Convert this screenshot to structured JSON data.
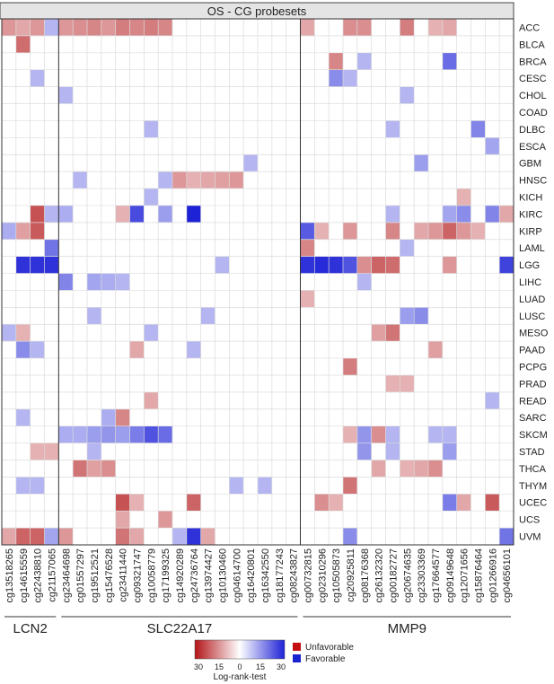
{
  "chart_data": {
    "type": "heatmap",
    "title": "OS - CG probesets",
    "rows": [
      "ACC",
      "BLCA",
      "BRCA",
      "CESC",
      "CHOL",
      "COAD",
      "DLBC",
      "ESCA",
      "GBM",
      "HNSC",
      "KICH",
      "KIRC",
      "KIRP",
      "LAML",
      "LGG",
      "LIHC",
      "LUAD",
      "LUSC",
      "MESO",
      "PAAD",
      "PCPG",
      "PRAD",
      "READ",
      "SARC",
      "SKCM",
      "STAD",
      "THCA",
      "THYM",
      "UCEC",
      "UCS",
      "UVM"
    ],
    "groups": [
      {
        "name": "LCN2",
        "columns": [
          "cg13518265",
          "cg14615559",
          "cg22438810",
          "cg21157065"
        ]
      },
      {
        "name": "SLC22A17",
        "columns": [
          "cg23464698",
          "cg01557297",
          "cg19512521",
          "cg15476528",
          "cg23411440",
          "cg09321747",
          "cg10058779",
          "cg17199325",
          "cg14920289",
          "cg24736764",
          "cg13974427",
          "cg10130460",
          "cg04614700",
          "cg16420801",
          "cg16342550",
          "cg18177243",
          "cg08243827"
        ]
      },
      {
        "name": "MMP9",
        "columns": [
          "cg00732815",
          "cg02310296",
          "cg10505873",
          "cg20925811",
          "cg08176368",
          "cg26132320",
          "cg00182727",
          "cg20674635",
          "cg23303369",
          "cg17664577",
          "cg09149648",
          "cg12071656",
          "cg15876464",
          "cg01266916",
          "cg04656101"
        ]
      }
    ],
    "value_scale": "signed log-rank statistic: negative = unfavorable (red), positive = favorable (blue)",
    "cells": [
      [
        "ACC",
        0,
        -12
      ],
      [
        "ACC",
        1,
        -10
      ],
      [
        "ACC",
        2,
        -12
      ],
      [
        "ACC",
        3,
        9
      ],
      [
        "ACC",
        4,
        -12
      ],
      [
        "ACC",
        5,
        -13
      ],
      [
        "ACC",
        6,
        -14
      ],
      [
        "ACC",
        7,
        -12
      ],
      [
        "ACC",
        8,
        -15
      ],
      [
        "ACC",
        9,
        -14
      ],
      [
        "ACC",
        10,
        -15
      ],
      [
        "ACC",
        11,
        -14
      ],
      [
        "BLCA",
        1,
        -17
      ],
      [
        "CESC",
        2,
        9
      ],
      [
        "CHOL",
        4,
        9
      ],
      [
        "DLBC",
        10,
        9
      ],
      [
        "GBM",
        17,
        9
      ],
      [
        "HNSC",
        5,
        9
      ],
      [
        "HNSC",
        11,
        9
      ],
      [
        "HNSC",
        12,
        -12
      ],
      [
        "HNSC",
        13,
        -9
      ],
      [
        "HNSC",
        14,
        -10
      ],
      [
        "HNSC",
        15,
        -11
      ],
      [
        "HNSC",
        16,
        -12
      ],
      [
        "KICH",
        10,
        9
      ],
      [
        "KIRC",
        2,
        -20
      ],
      [
        "KIRC",
        3,
        9
      ],
      [
        "KIRC",
        4,
        10
      ],
      [
        "KIRC",
        8,
        -9
      ],
      [
        "KIRC",
        9,
        22
      ],
      [
        "KIRC",
        11,
        12
      ],
      [
        "KIRC",
        13,
        27
      ],
      [
        "KIRP",
        0,
        10
      ],
      [
        "KIRP",
        1,
        -11
      ],
      [
        "KIRP",
        2,
        -19
      ],
      [
        "KIRP",
        21,
        20
      ],
      [
        "LAML",
        3,
        17
      ],
      [
        "LGG",
        1,
        25
      ],
      [
        "LGG",
        2,
        25
      ],
      [
        "LGG",
        3,
        25
      ],
      [
        "LGG",
        15,
        9
      ],
      [
        "LIHC",
        4,
        15
      ],
      [
        "LIHC",
        6,
        11
      ],
      [
        "LIHC",
        7,
        10
      ],
      [
        "LIHC",
        8,
        9
      ],
      [
        "LUAD",
        0,
        0
      ],
      [
        "LUSC",
        6,
        9
      ],
      [
        "LUSC",
        14,
        9
      ],
      [
        "MESO",
        0,
        9
      ],
      [
        "MESO",
        1,
        -9
      ],
      [
        "MESO",
        10,
        9
      ],
      [
        "PAAD",
        1,
        14
      ],
      [
        "PAAD",
        2,
        9
      ],
      [
        "PAAD",
        9,
        -10
      ],
      [
        "PAAD",
        13,
        9
      ],
      [
        "READ",
        10,
        -10
      ],
      [
        "SARC",
        1,
        9
      ],
      [
        "SARC",
        7,
        10
      ],
      [
        "SARC",
        8,
        -14
      ],
      [
        "SKCM",
        4,
        10
      ],
      [
        "SKCM",
        5,
        10
      ],
      [
        "SKCM",
        6,
        12
      ],
      [
        "SKCM",
        7,
        13
      ],
      [
        "SKCM",
        8,
        12
      ],
      [
        "SKCM",
        9,
        16
      ],
      [
        "SKCM",
        10,
        21
      ],
      [
        "SKCM",
        11,
        18
      ],
      [
        "STAD",
        2,
        -9
      ],
      [
        "STAD",
        3,
        -9
      ],
      [
        "STAD",
        6,
        9
      ],
      [
        "THCA",
        5,
        -16
      ],
      [
        "THCA",
        6,
        -11
      ],
      [
        "THCA",
        7,
        -13
      ],
      [
        "THYM",
        1,
        9
      ],
      [
        "THYM",
        2,
        9
      ],
      [
        "THYM",
        16,
        9
      ],
      [
        "THYM",
        18,
        9
      ],
      [
        "UCEC",
        8,
        -20
      ],
      [
        "UCEC",
        9,
        -9
      ],
      [
        "UCEC",
        13,
        -18
      ],
      [
        "UCS",
        8,
        -10
      ],
      [
        "UCS",
        11,
        -12
      ],
      [
        "UVM",
        0,
        -10
      ],
      [
        "UVM",
        1,
        -18
      ],
      [
        "UVM",
        2,
        -18
      ],
      [
        "UVM",
        3,
        11
      ],
      [
        "UVM",
        4,
        -12
      ],
      [
        "UVM",
        8,
        -16
      ],
      [
        "UVM",
        9,
        -10
      ],
      [
        "UVM",
        12,
        9
      ],
      [
        "UVM",
        13,
        25
      ],
      [
        "UVM",
        14,
        -10
      ],
      [
        "ACC",
        21,
        -10
      ],
      [
        "ACC",
        24,
        -13
      ],
      [
        "ACC",
        25,
        -13
      ],
      [
        "ACC",
        28,
        -15
      ],
      [
        "ACC",
        30,
        -9
      ],
      [
        "ACC",
        31,
        -10
      ],
      [
        "BRCA",
        23,
        -14
      ],
      [
        "BRCA",
        25,
        9
      ],
      [
        "BRCA",
        31,
        18
      ],
      [
        "CESC",
        23,
        14
      ],
      [
        "CESC",
        24,
        9
      ],
      [
        "CHOL",
        28,
        9
      ],
      [
        "DLBC",
        27,
        9
      ],
      [
        "DLBC",
        33,
        15
      ],
      [
        "ESCA",
        34,
        11
      ],
      [
        "GBM",
        29,
        12
      ],
      [
        "KICH",
        32,
        -9
      ],
      [
        "KIRC",
        27,
        9
      ],
      [
        "KIRC",
        31,
        11
      ],
      [
        "KIRC",
        32,
        14
      ],
      [
        "KIRC",
        34,
        15
      ],
      [
        "KIRC",
        35,
        -10
      ],
      [
        "KIRP",
        22,
        -9
      ],
      [
        "KIRP",
        24,
        -12
      ],
      [
        "KIRP",
        27,
        -14
      ],
      [
        "KIRP",
        29,
        -10
      ],
      [
        "KIRP",
        30,
        -12
      ],
      [
        "KIRP",
        31,
        -18
      ],
      [
        "KIRP",
        32,
        -12
      ],
      [
        "KIRP",
        33,
        -9
      ],
      [
        "LAML",
        21,
        -14
      ],
      [
        "LAML",
        28,
        9
      ],
      [
        "LGG",
        21,
        25
      ],
      [
        "LGG",
        22,
        26
      ],
      [
        "LGG",
        23,
        25
      ],
      [
        "LGG",
        24,
        21
      ],
      [
        "LGG",
        25,
        -13
      ],
      [
        "LGG",
        26,
        -18
      ],
      [
        "LGG",
        27,
        -17
      ],
      [
        "LGG",
        31,
        -12
      ],
      [
        "LGG",
        35,
        23
      ],
      [
        "LIHC",
        25,
        9
      ],
      [
        "LUAD",
        21,
        -9
      ],
      [
        "LUSC",
        28,
        12
      ],
      [
        "LUSC",
        29,
        14
      ],
      [
        "MESO",
        26,
        -11
      ],
      [
        "MESO",
        27,
        -16
      ],
      [
        "PAAD",
        30,
        -11
      ],
      [
        "PCPG",
        24,
        -15
      ],
      [
        "PRAD",
        27,
        -9
      ],
      [
        "PRAD",
        28,
        -9
      ],
      [
        "READ",
        34,
        9
      ],
      [
        "SKCM",
        24,
        -9
      ],
      [
        "SKCM",
        25,
        13
      ],
      [
        "SKCM",
        26,
        -13
      ],
      [
        "SKCM",
        27,
        9
      ],
      [
        "SKCM",
        30,
        9
      ],
      [
        "SKCM",
        31,
        9
      ],
      [
        "STAD",
        25,
        13
      ],
      [
        "STAD",
        27,
        9
      ],
      [
        "STAD",
        31,
        12
      ],
      [
        "THCA",
        26,
        -10
      ],
      [
        "THCA",
        28,
        -9
      ],
      [
        "THCA",
        29,
        -10
      ],
      [
        "THCA",
        30,
        -13
      ],
      [
        "THYM",
        24,
        -16
      ],
      [
        "UCEC",
        22,
        -13
      ],
      [
        "UCEC",
        23,
        -9
      ],
      [
        "UCEC",
        31,
        16
      ],
      [
        "UCEC",
        32,
        -10
      ],
      [
        "UCEC",
        34,
        -19
      ],
      [
        "UVM",
        24,
        14
      ],
      [
        "UVM",
        35,
        17
      ]
    ],
    "legend": {
      "categories": [
        {
          "label": "Unfavorable",
          "color": "#c40f12"
        },
        {
          "label": "Favorable",
          "color": "#1a23d0"
        }
      ],
      "colorbar_ticks": [
        "30",
        "15",
        "0",
        "15",
        "30"
      ],
      "colorbar_label": "Log-rank-test"
    },
    "colors": {
      "strong_unfavorable": "#b21518",
      "neutral": "#ffffff",
      "strong_favorable": "#1e22d6",
      "grid": "#dcdcdc",
      "title_bg": "#e4e4e4"
    }
  }
}
